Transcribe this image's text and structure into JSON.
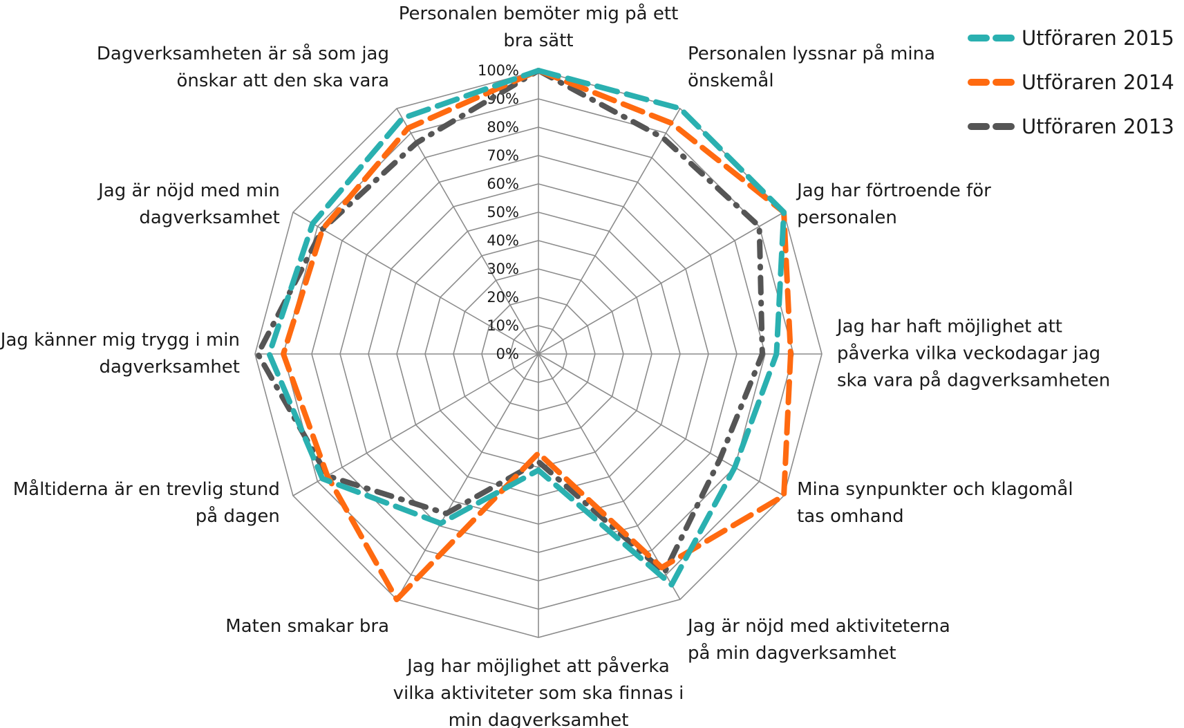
{
  "chart_data": {
    "type": "radar",
    "categories": [
      "Personalen bemöter mig på ett bra sätt",
      "Personalen lyssnar på mina önskemål",
      "Jag har förtroende för personalen",
      "Jag har haft möjlighet att påverka vilka veckodagar jag ska vara på dagverksamheten",
      "Mina synpunkter och klagomål tas omhand",
      "Jag är nöjd med aktiviteterna på min dagverksamhet",
      "Jag har möjlighet att påverka vilka aktiviteter som ska finnas i min dagverksamhet",
      "Maten smakar bra",
      "Måltiderna är en trevlig stund på dagen",
      "Jag känner mig trygg i min dagverksamhet",
      "Jag är nöjd med min dagverksamhet",
      "Dagverksamheten är så som jag önskar att den ska vara"
    ],
    "category_lines": [
      [
        "Personalen bemöter mig på ett",
        "bra sätt"
      ],
      [
        "Personalen lyssnar på mina",
        "önskemål"
      ],
      [
        "Jag har förtroende för",
        "personalen"
      ],
      [
        "Jag har haft möjlighet att",
        "påverka vilka veckodagar jag",
        "ska vara på dagverksamheten"
      ],
      [
        "Mina synpunkter och klagomål",
        "tas omhand"
      ],
      [
        "Jag är nöjd med aktiviteterna",
        "på min dagverksamhet"
      ],
      [
        "Jag har möjlighet att påverka",
        "vilka aktiviteter som ska finnas i",
        "min dagverksamhet"
      ],
      [
        "Maten smakar bra"
      ],
      [
        "Måltiderna är en trevlig stund",
        "på dagen"
      ],
      [
        "Jag känner mig trygg i min",
        "dagverksamhet"
      ],
      [
        "Jag är nöjd med min",
        "dagverksamhet"
      ],
      [
        "Dagverksamheten är så som jag",
        "önskar att den ska vara"
      ]
    ],
    "rlim": [
      0,
      100
    ],
    "tick_labels": [
      "0%",
      "10%",
      "20%",
      "30%",
      "40%",
      "50%",
      "60%",
      "70%",
      "80%",
      "90%",
      "100%"
    ],
    "grid": true,
    "legend_position": "top-right",
    "series": [
      {
        "name": "Utföraren 2015",
        "color": "#2ab0b0",
        "dash": "dashed",
        "values": [
          100,
          100,
          100,
          84,
          80,
          94,
          41,
          69,
          88,
          95,
          92,
          96
        ]
      },
      {
        "name": "Utföraren 2014",
        "color": "#ff6a10",
        "dash": "dashed",
        "values": [
          100,
          94,
          100,
          89,
          100,
          87,
          35,
          100,
          86,
          90,
          88,
          92
        ]
      },
      {
        "name": "Utföraren 2013",
        "color": "#555555",
        "dash": "dash-dot",
        "values": [
          100,
          88,
          90,
          79,
          74,
          89,
          38,
          65,
          86,
          99,
          88,
          86
        ]
      }
    ]
  }
}
